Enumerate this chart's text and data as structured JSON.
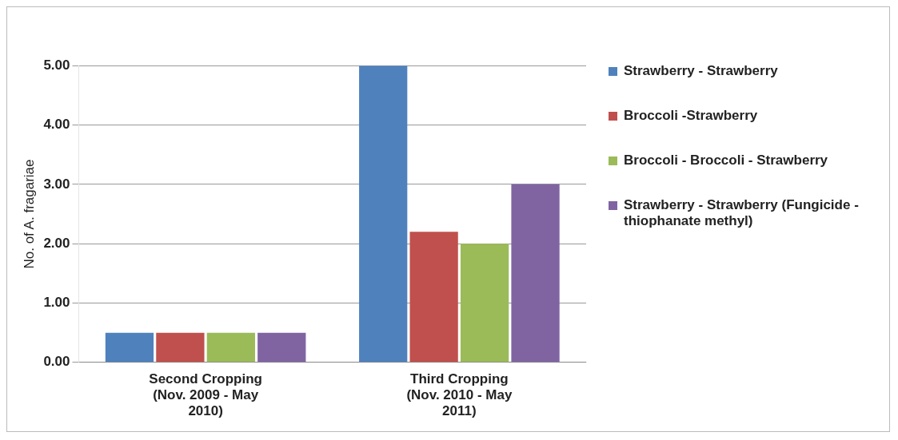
{
  "chart_data": {
    "type": "bar",
    "ylabel": "No. of A. fragariae",
    "categories": [
      "Second Cropping (Nov. 2009 - May 2010)",
      "Third Cropping (Nov. 2010 - May 2011)"
    ],
    "series": [
      {
        "name": "Strawberry - Strawberry",
        "color": "#4f81bd",
        "values": [
          0.5,
          5.0
        ]
      },
      {
        "name": "Broccoli -Strawberry",
        "color": "#c0504d",
        "values": [
          0.5,
          2.2
        ]
      },
      {
        "name": "Broccoli - Broccoli - Strawberry",
        "color": "#9bbb59",
        "values": [
          0.5,
          2.0
        ]
      },
      {
        "name": "Strawberry - Strawberry (Fungicide - thiophanate methyl)",
        "color": "#8064a2",
        "values": [
          0.5,
          3.0
        ]
      }
    ],
    "ylim": [
      0,
      5
    ],
    "yticks": [
      {
        "value": 0,
        "label": "0.00"
      },
      {
        "value": 1,
        "label": "1.00"
      },
      {
        "value": 2,
        "label": "2.00"
      },
      {
        "value": 3,
        "label": "3.00"
      },
      {
        "value": 4,
        "label": "4.00"
      },
      {
        "value": 5,
        "label": "5.00"
      }
    ],
    "grid": "y",
    "legend": "right"
  }
}
